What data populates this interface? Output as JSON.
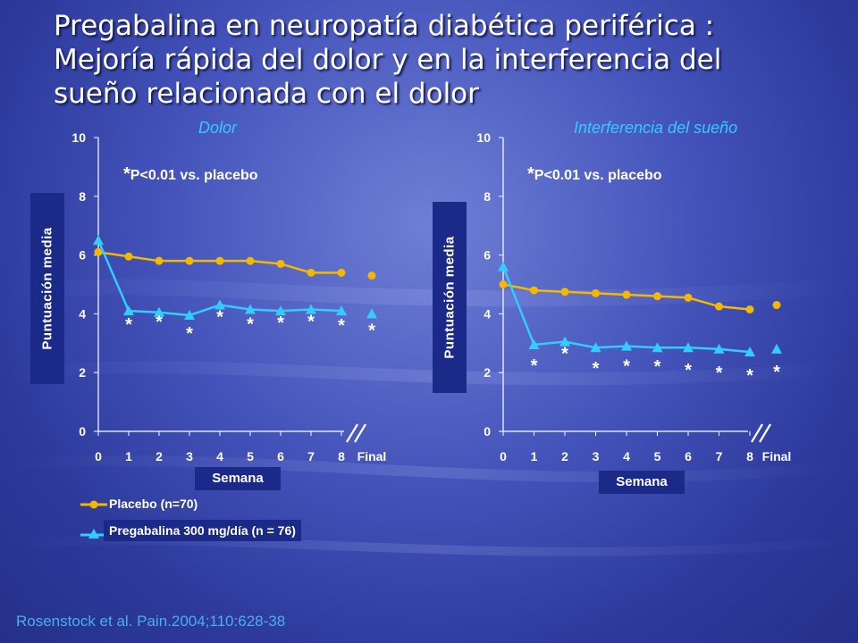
{
  "title_lines": [
    "Pregabalina en neuropatía diabética periférica :",
    "Mejoría rápida del dolor y en la interferencia del",
    "sueño relacionada con el dolor"
  ],
  "significance_note_star": "*",
  "significance_note_text": "P<0.01 vs. placebo",
  "legend": {
    "placebo": "Placebo (n=70)",
    "pregabalina": "Pregabalina 300 mg/día (n = 76)"
  },
  "citation": "Rosenstock et al. Pain.2004;110:628-38",
  "colors": {
    "placebo": "#f5b800",
    "pregabalina": "#33ccff",
    "label_box": "#1b2a88",
    "subtitle": "#33ccff"
  },
  "chart_data": [
    {
      "type": "line",
      "title": "Dolor",
      "xlabel": "Semana",
      "ylabel": "Puntuación media",
      "categories": [
        "0",
        "1",
        "2",
        "3",
        "4",
        "5",
        "6",
        "7",
        "8",
        "Final"
      ],
      "ylim": [
        0,
        10
      ],
      "yticks": [
        0,
        2,
        4,
        6,
        8,
        10
      ],
      "axis_break": true,
      "series": [
        {
          "name": "Placebo (n=70)",
          "values": [
            6.1,
            5.95,
            5.8,
            5.8,
            5.8,
            5.8,
            5.7,
            5.4,
            5.4,
            5.3
          ]
        },
        {
          "name": "Pregabalina 300 mg/día (n = 76)",
          "values": [
            6.5,
            4.1,
            4.05,
            3.95,
            4.3,
            4.15,
            4.1,
            4.15,
            4.1,
            4.0
          ]
        }
      ],
      "significance_markers": [
        "1",
        "2",
        "3",
        "4",
        "5",
        "6",
        "7",
        "8",
        "Final"
      ]
    },
    {
      "type": "line",
      "title": "Interferencia del sueño",
      "xlabel": "Semana",
      "ylabel": "Puntuación media",
      "categories": [
        "0",
        "1",
        "2",
        "3",
        "4",
        "5",
        "6",
        "7",
        "8",
        "Final"
      ],
      "ylim": [
        0,
        10
      ],
      "yticks": [
        0,
        2,
        4,
        6,
        8,
        10
      ],
      "axis_break": true,
      "series": [
        {
          "name": "Placebo (n=70)",
          "values": [
            5.0,
            4.8,
            4.75,
            4.7,
            4.65,
            4.6,
            4.55,
            4.25,
            4.15,
            4.3
          ]
        },
        {
          "name": "Pregabalina 300 mg/día (n = 76)",
          "values": [
            5.6,
            2.95,
            3.05,
            2.85,
            2.9,
            2.85,
            2.85,
            2.8,
            2.7,
            2.8
          ]
        }
      ],
      "significance_markers": [
        "1",
        "2",
        "3",
        "4",
        "5",
        "6",
        "7",
        "8",
        "Final"
      ]
    }
  ]
}
